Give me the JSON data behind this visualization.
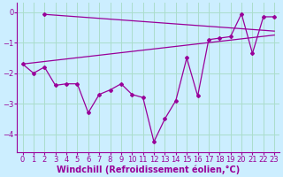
{
  "x": [
    0,
    1,
    2,
    3,
    4,
    5,
    6,
    7,
    8,
    9,
    10,
    11,
    12,
    13,
    14,
    15,
    16,
    17,
    18,
    19,
    20,
    21,
    22,
    23
  ],
  "windchill": [
    -1.7,
    -2.0,
    -1.8,
    -2.4,
    -2.35,
    -2.35,
    -3.3,
    -2.7,
    -2.55,
    -2.35,
    -2.7,
    -2.8,
    -4.25,
    -3.5,
    -2.9,
    -1.5,
    -2.75,
    -0.9,
    -0.85,
    -0.8,
    -0.05,
    -1.35,
    -0.15,
    -0.15
  ],
  "upper_trend_x": [
    2,
    23
  ],
  "upper_trend_y": [
    -0.07,
    -0.62
  ],
  "lower_trend_x": [
    0,
    23
  ],
  "lower_trend_y": [
    -1.7,
    -0.75
  ],
  "line_color": "#990099",
  "bg_color": "#cceeff",
  "grid_color": "#aaddcc",
  "xlabel": "Windchill (Refroidissement éolien,°C)",
  "yticks": [
    0,
    -1,
    -2,
    -3,
    -4
  ],
  "ylim": [
    -4.6,
    0.3
  ],
  "xlim": [
    -0.5,
    23.5
  ],
  "xlabel_fontsize": 7.0,
  "tick_fontsize": 6.0
}
